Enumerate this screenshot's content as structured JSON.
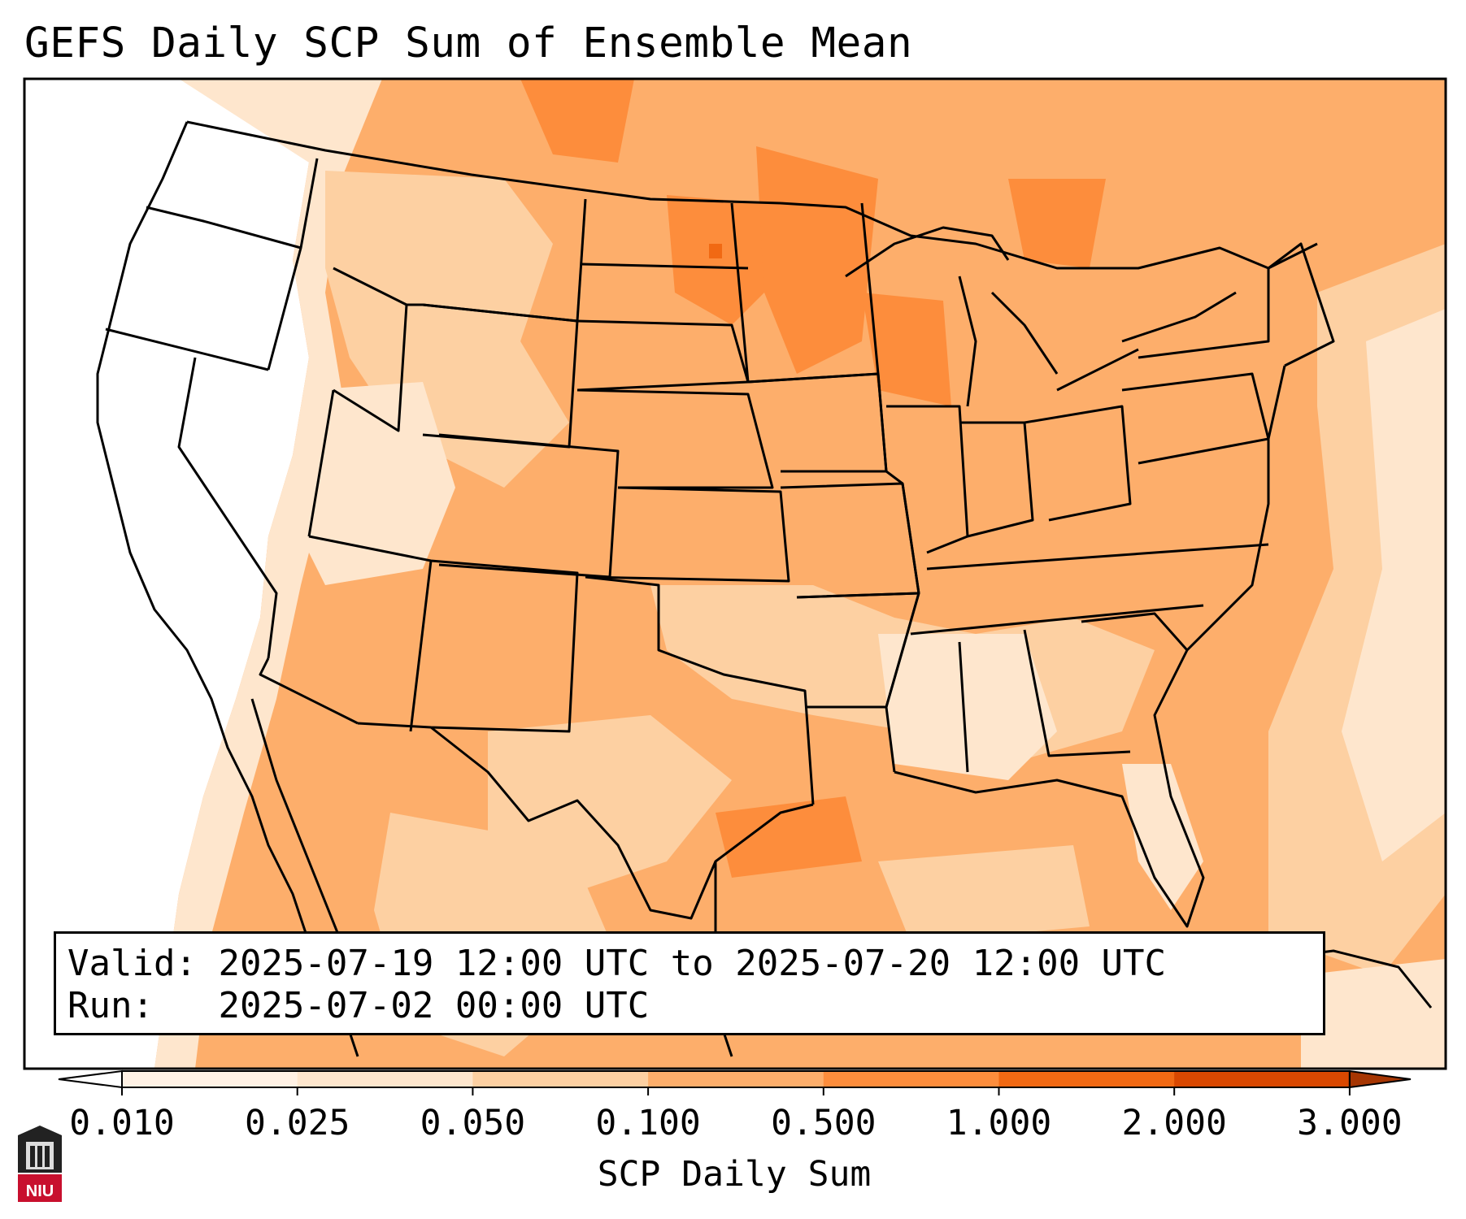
{
  "title": "GEFS Daily SCP Sum of Ensemble Mean",
  "info": {
    "valid_label": "Valid:",
    "valid_value": "2025-07-19 12:00 UTC to 2025-07-20 12:00 UTC",
    "run_label": "Run:",
    "run_value": "2025-07-02 00:00 UTC"
  },
  "colorbar": {
    "label": "SCP Daily Sum",
    "ticks": [
      "0.010",
      "0.025",
      "0.050",
      "0.100",
      "0.500",
      "1.000",
      "2.000",
      "3.000"
    ],
    "colors": [
      "#fff1e4",
      "#fee6cd",
      "#fdd0a2",
      "#fdae6b",
      "#fd8d3c",
      "#f16913",
      "#d94801"
    ],
    "extend_min_color": "#ffffff",
    "extend_max_color": "#a63603"
  },
  "logo": {
    "text": "NIU",
    "colors": {
      "dark": "#222222",
      "red": "#c8102e"
    }
  }
}
